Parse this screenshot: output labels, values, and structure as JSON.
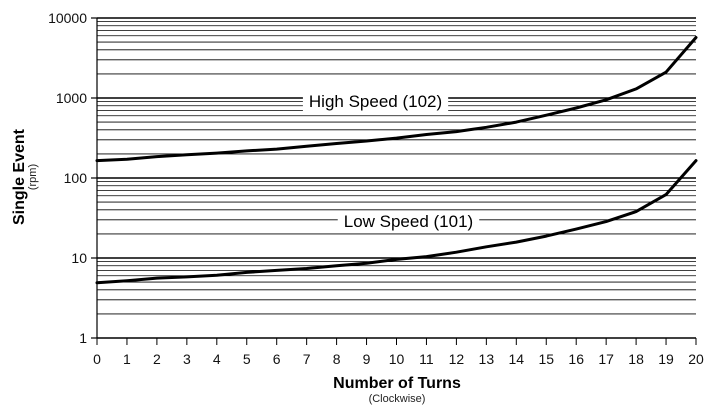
{
  "chart_data": {
    "type": "line",
    "title": "",
    "xlabel": "Number of Turns",
    "xlabel_sub": "(Clockwise)",
    "ylabel": "Single Event",
    "ylabel_sub": "(rpm)",
    "y_scale": "log",
    "ylim": [
      1,
      10000
    ],
    "xlim": [
      0,
      20
    ],
    "x_ticks": [
      0,
      1,
      2,
      3,
      4,
      5,
      6,
      7,
      8,
      9,
      10,
      11,
      12,
      13,
      14,
      15,
      16,
      17,
      18,
      19,
      20
    ],
    "y_ticks": [
      1,
      10,
      100,
      1000,
      10000
    ],
    "y_tick_labels": [
      "1",
      "10",
      "100",
      "1000",
      "10000"
    ],
    "grid": "horizontal",
    "legend": "none",
    "x": [
      0,
      1,
      2,
      3,
      4,
      5,
      6,
      7,
      8,
      9,
      10,
      11,
      12,
      13,
      14,
      15,
      16,
      17,
      18,
      19,
      20
    ],
    "series": [
      {
        "name": "High Speed (102)",
        "label_at_x": 9.3,
        "values": [
          165,
          172,
          185,
          195,
          205,
          218,
          230,
          250,
          270,
          290,
          315,
          350,
          380,
          430,
          500,
          610,
          750,
          950,
          1300,
          2100,
          5700
        ]
      },
      {
        "name": "Low Speed (101)",
        "label_at_x": 10.4,
        "values": [
          4.9,
          5.2,
          5.6,
          5.8,
          6.1,
          6.6,
          7.0,
          7.4,
          8.0,
          8.6,
          9.6,
          10.4,
          11.8,
          13.8,
          15.8,
          18.8,
          23,
          28.5,
          38,
          62,
          165
        ]
      }
    ],
    "colors": {
      "line": "#000000",
      "grid": "#000000",
      "label_background": "#ffffff"
    }
  }
}
